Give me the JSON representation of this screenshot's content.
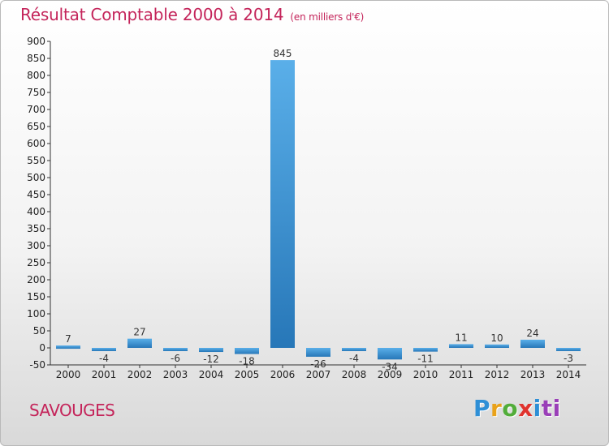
{
  "header": {
    "title": "Résultat Comptable 2000 à 2014",
    "unit": "(en milliers d'€)"
  },
  "commune": "SAVOUGES",
  "logo": {
    "letters": [
      "P",
      "r",
      "o",
      "x",
      "i",
      "ti"
    ]
  },
  "colors": {
    "title": "#c4245a",
    "bar_light": "#5aafe9",
    "bar_dark": "#2777b8",
    "axis": "#333333"
  },
  "chart_data": {
    "type": "bar",
    "title": "Résultat Comptable 2000 à 2014",
    "xlabel": "",
    "ylabel": "(en milliers d'€)",
    "categories": [
      "2000",
      "2001",
      "2002",
      "2003",
      "2004",
      "2005",
      "2006",
      "2007",
      "2008",
      "2009",
      "2010",
      "2011",
      "2012",
      "2013",
      "2014"
    ],
    "values": [
      7,
      -4,
      27,
      -6,
      -12,
      -18,
      845,
      -26,
      -4,
      -34,
      -11,
      11,
      10,
      24,
      -3
    ],
    "ylim": [
      -50,
      900
    ],
    "yticks": [
      -50,
      0,
      50,
      100,
      150,
      200,
      250,
      300,
      350,
      400,
      450,
      500,
      550,
      600,
      650,
      700,
      750,
      800,
      850,
      900
    ],
    "grid": false,
    "legend": "none"
  }
}
